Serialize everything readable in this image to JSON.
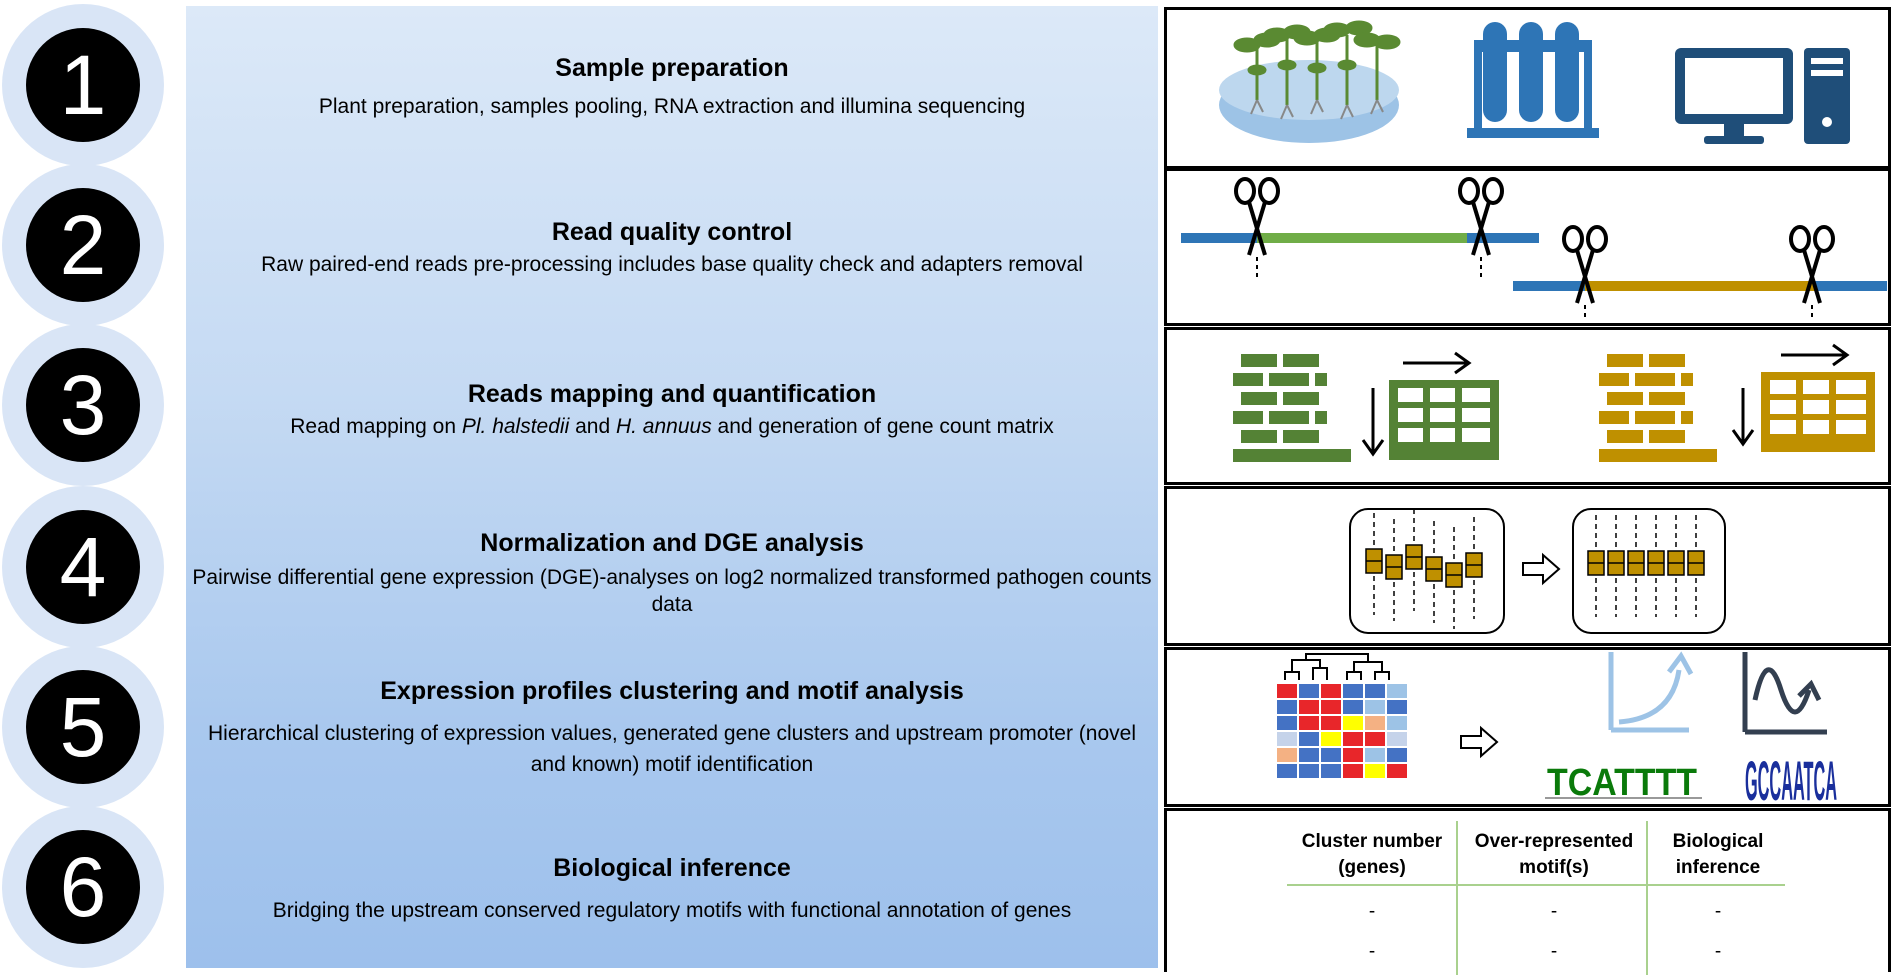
{
  "steps": [
    {
      "number": "1",
      "title": "Sample preparation",
      "desc": "Plant preparation,  samples pooling, RNA extraction and illumina sequencing"
    },
    {
      "number": "2",
      "title": "Read quality control",
      "desc": "Raw paired-end reads pre-processing includes base quality check and adapters removal"
    },
    {
      "number": "3",
      "title": "Reads mapping and quantification",
      "desc_parts": [
        "Read mapping on ",
        "Pl. halstedii",
        " and ",
        "H. annuus",
        " and generation of gene count matrix"
      ]
    },
    {
      "number": "4",
      "title": "Normalization and DGE analysis",
      "desc": "Pairwise differential gene expression (DGE)-analyses on log2 normalized transformed pathogen counts data"
    },
    {
      "number": "5",
      "title": "Expression profiles clustering and motif analysis",
      "desc": "Hierarchical clustering of expression values, generated gene clusters and upstream promoter (novel and known) motif identification"
    },
    {
      "number": "6",
      "title": "Biological inference",
      "desc": "Bridging the upstream conserved regulatory motifs with functional annotation of genes"
    }
  ],
  "table": {
    "headers": [
      "Cluster number (genes)",
      "Over-represented motif(s)",
      "Biological inference"
    ],
    "rows": [
      [
        "-",
        "-",
        "-"
      ],
      [
        "-",
        "-",
        "-"
      ]
    ]
  },
  "motif_left": "TCATTTT",
  "motif_right": "GCCAATCA",
  "colors": {
    "green": "#5a8a32",
    "gold": "#b8860b",
    "blue": "#2e75b6",
    "dark_blue": "#1f4e79"
  }
}
